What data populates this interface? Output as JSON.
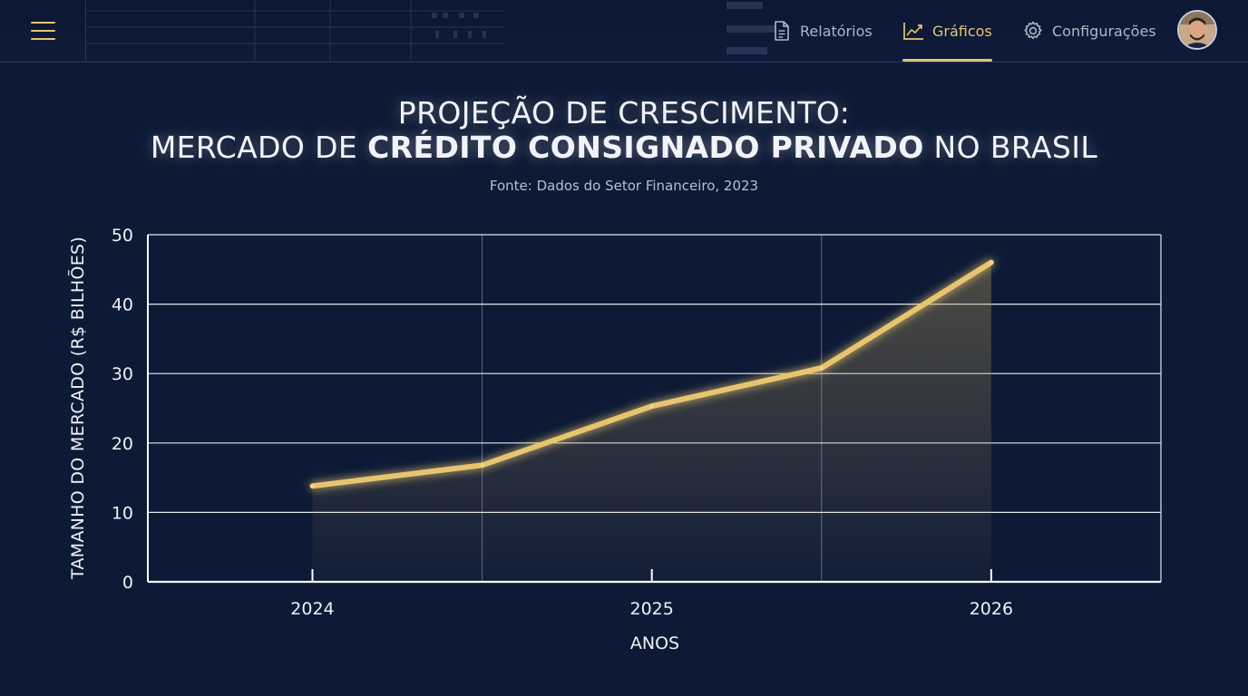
{
  "nav": {
    "items": [
      {
        "label": "Relatórios",
        "icon": "document-icon"
      },
      {
        "label": "Gráficos",
        "icon": "line-chart-icon"
      },
      {
        "label": "Configurações",
        "icon": "gear-icon"
      }
    ],
    "active_index": 1
  },
  "colors": {
    "background": "#0d1a36",
    "accent": "#e7c56f",
    "grid": "#ffffff"
  },
  "chart_data": {
    "type": "line",
    "title_line1": "PROJEÇÃO DE CRESCIMENTO:",
    "title_line2_pre": "MERCADO DE ",
    "title_line2_bold": "CRÉDITO CONSIGNADO PRIVADO",
    "title_line2_post": " NO BRASIL",
    "subtitle": "Fonte: Dados do Setor Financeiro, 2023",
    "xlabel": "ANOS",
    "ylabel": "TAMANHO DO MERCADO (R$ BILHÕES)",
    "ylim": [
      0,
      50
    ],
    "yticks": [
      0,
      10,
      20,
      30,
      40,
      50
    ],
    "xticks": [
      "2024",
      "2025",
      "2026"
    ],
    "x": [
      2024,
      2024.5,
      2025,
      2025.5,
      2026
    ],
    "series": [
      {
        "values": [
          13.8,
          16.8,
          25.3,
          30.8,
          46.0
        ]
      }
    ],
    "grid": true
  }
}
